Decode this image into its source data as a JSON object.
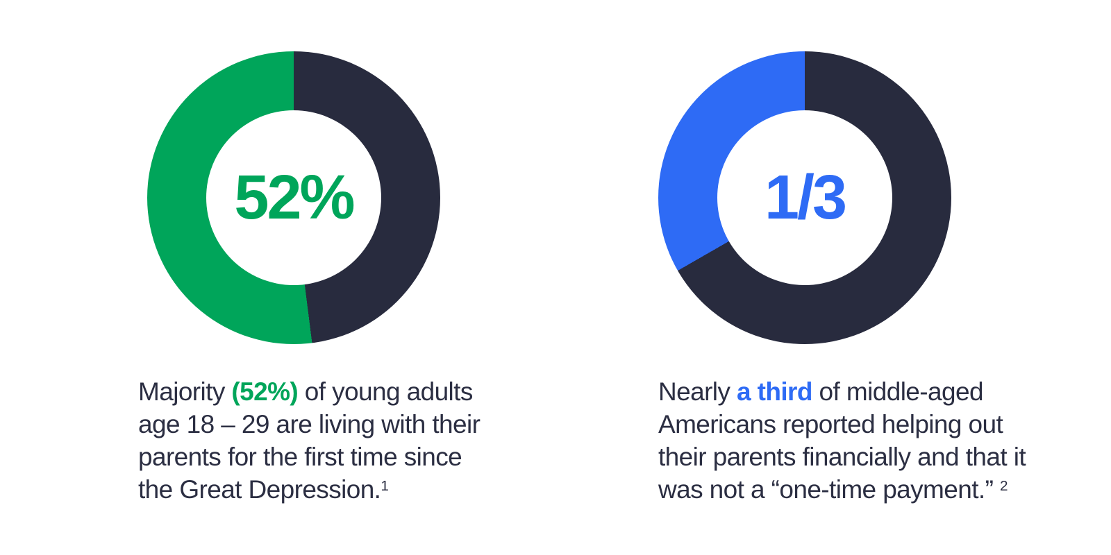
{
  "page": {
    "background": "#ffffff"
  },
  "colors": {
    "text": "#2b2e42",
    "green_accent": "#00a55a",
    "blue_accent": "#2e6bf5",
    "dark_ring": "#282b3e"
  },
  "chart_data": [
    {
      "type": "pie",
      "subtype": "donut",
      "center_label": "52%",
      "values": [
        52,
        48
      ],
      "unit": "percent",
      "colors": [
        "#00a55a",
        "#282b3e"
      ],
      "start": "top",
      "direction": "counterclockwise",
      "hole_ratio": 0.6,
      "legend": "none",
      "title": ""
    },
    {
      "type": "pie",
      "subtype": "donut",
      "center_label": "1/3",
      "values": [
        33.3,
        66.7
      ],
      "unit": "percent",
      "colors": [
        "#2e6bf5",
        "#282b3e"
      ],
      "start": "top",
      "direction": "counterclockwise",
      "hole_ratio": 0.6,
      "legend": "none",
      "title": ""
    }
  ],
  "captions": {
    "left": {
      "line1_pre": "Majority ",
      "line1_bold": "(52%)",
      "line1_post": " of young adults",
      "line2": "age 18 – 29 are living with their",
      "line3": "parents for the first time since",
      "line4": "the Great Depression.",
      "footnote_marker": "1"
    },
    "right": {
      "line1_pre": "Nearly ",
      "line1_bold": "a third",
      "line1_post": " of middle-aged",
      "line2": "Americans reported helping out",
      "line3": "their parents financially and that it",
      "line4": "was not a “one-time payment.” ",
      "footnote_marker": "2"
    }
  }
}
